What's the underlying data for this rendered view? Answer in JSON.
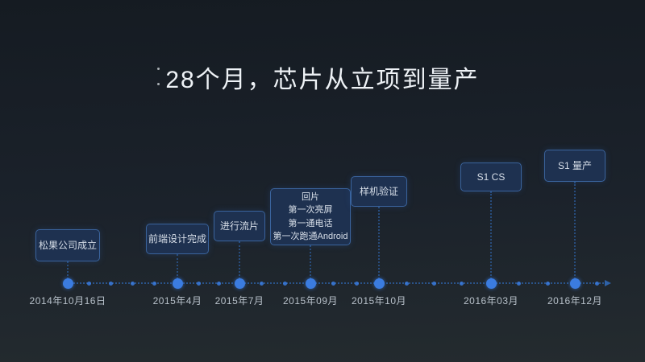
{
  "title": "28个月，芯片从立项到量产",
  "timeline": {
    "milestones": [
      {
        "lines": [
          "松果公司成立"
        ],
        "date": "2014年10月16日"
      },
      {
        "lines": [
          "前端设计完成"
        ],
        "date": "2015年4月"
      },
      {
        "lines": [
          "进行流片"
        ],
        "date": "2015年7月"
      },
      {
        "lines": [
          "回片",
          "第一次亮屏",
          "第一通电话",
          "第一次跑通Android"
        ],
        "date": "2015年09月"
      },
      {
        "lines": [
          "样机验证"
        ],
        "date": "2015年10月"
      },
      {
        "lines": [
          "S1 CS"
        ],
        "date": "2016年03月"
      },
      {
        "lines": [
          "S1 量产"
        ],
        "date": "2016年12月"
      }
    ]
  },
  "colors": {
    "accent_blue": "#3b7ce0",
    "line_blue": "#2e62a8",
    "box_fill": "#1e3150",
    "box_border": "#3a639c",
    "box_text": "#d7dee8",
    "date_text": "#b7c0c9",
    "title_text": "#eef2f6",
    "background_top": "#151b22",
    "background_bottom": "#242b2f"
  }
}
